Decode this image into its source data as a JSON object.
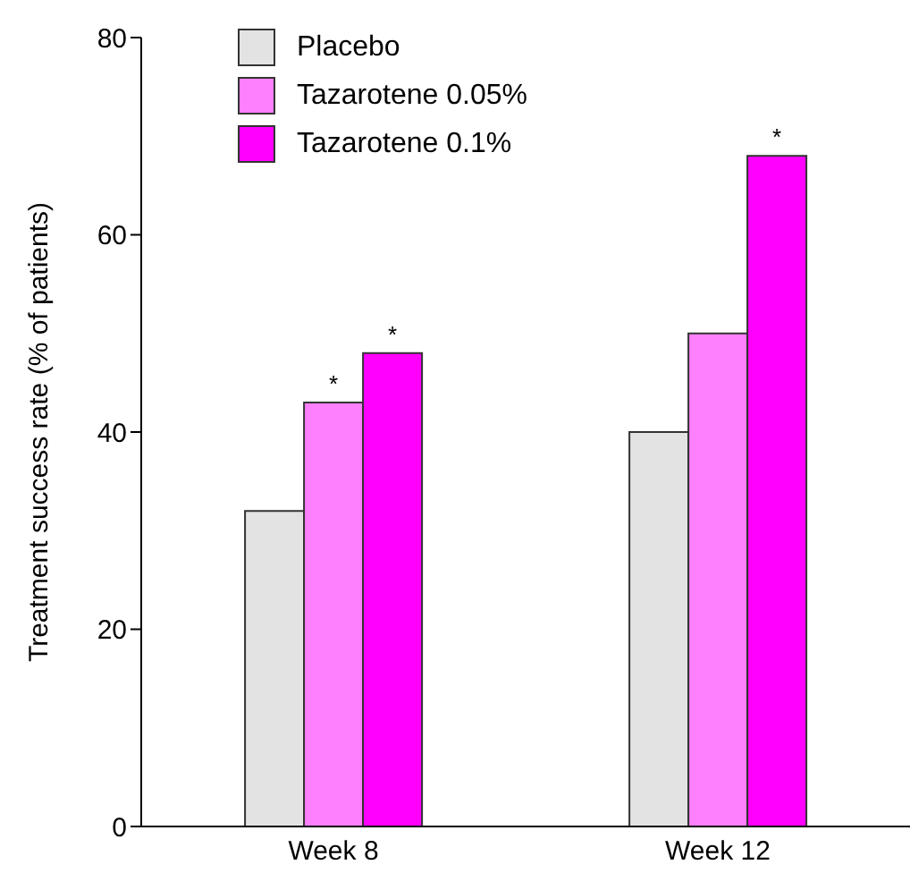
{
  "chart_data": {
    "type": "bar",
    "ylabel": "Treatment success rate (% of patients)",
    "categories": [
      "Week 8",
      "Week 12"
    ],
    "series": [
      {
        "name": "Placebo",
        "color": "#e3e3e3",
        "values": [
          32,
          40
        ]
      },
      {
        "name": "Tazarotene 0.05%",
        "color": "#ff80ff",
        "values": [
          43,
          50
        ],
        "value_labels": [
          "*",
          null
        ]
      },
      {
        "name": "Tazarotene 0.1%",
        "color": "#ff00ff",
        "values": [
          48,
          68
        ],
        "value_labels": [
          "*",
          "*"
        ]
      }
    ],
    "ylim": [
      0,
      80
    ],
    "yticks": [
      0,
      20,
      40,
      60,
      80
    ],
    "grid": false,
    "legend": "top left"
  }
}
